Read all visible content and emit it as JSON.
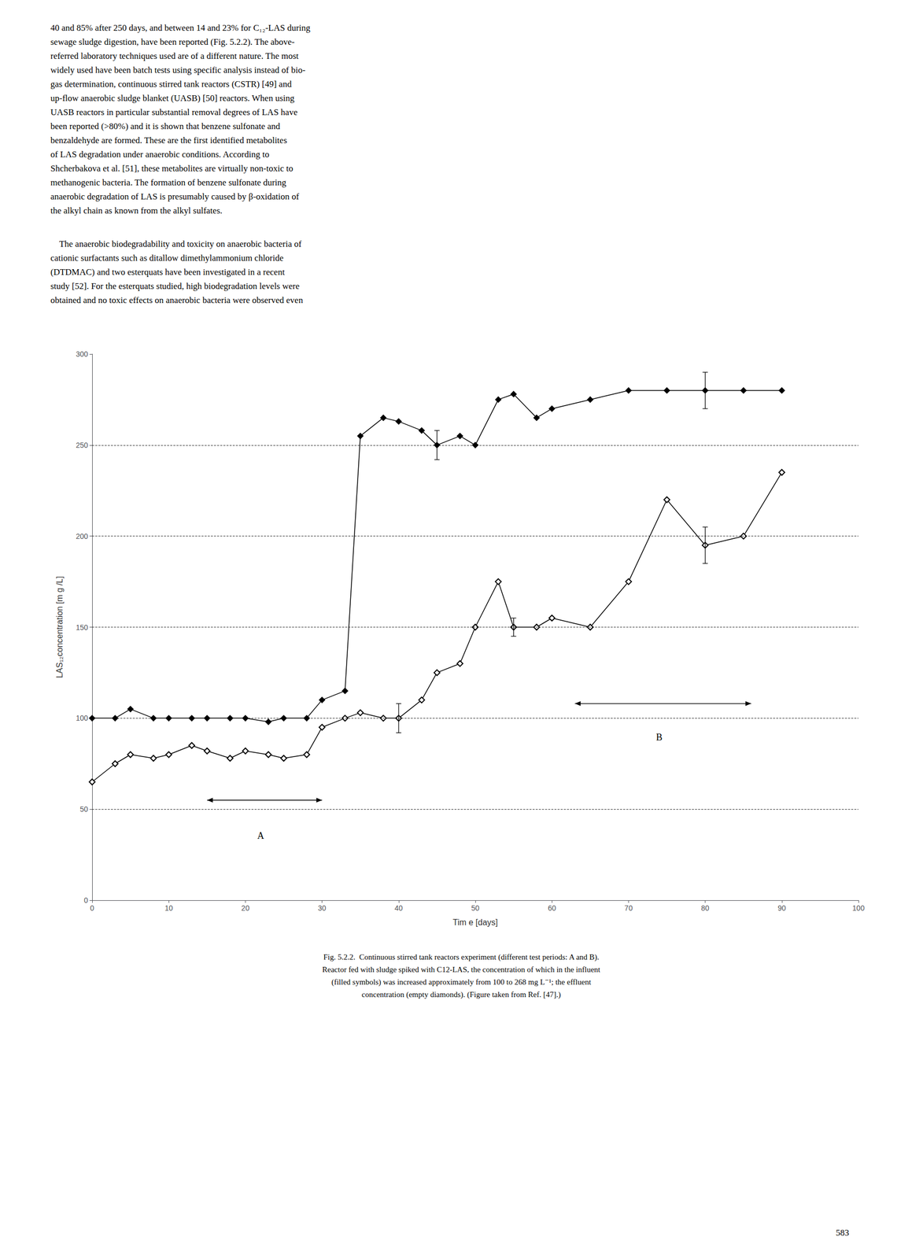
{
  "page_text": {
    "paragraphs": [
      "40 and 85% after 250 days, and between 14 and 23% for C₁₂-LAS during\nsewage sludge digestion, have been reported (Fig. 5.2.2). The above-\nreferred laboratory techniques used are of a different nature. The most\nwidely used have been batch tests using specific analysis instead of bio-\ngas determination, continuous stirred tank reactors (CSTR) [49] and\nup-flow anaerobic sludge blanket (UASB) [50] reactors. When using\nUASB reactors in particular substantial removal degrees of LAS have\nbeen reported (>80%) and it is shown that benzene sulfonate and\nbenzaldehyde are formed. These are the first identified metabolites\nof LAS degradation under anaerobic conditions. According to\nShcherbakova et al. [51], these metabolites are virtually non-toxic to\nmethanogenic bacteria. The formation of benzene sulfonate during\nanaerobic degradation of LAS is presumably caused by β-oxidation of\nthe alkyl chain as known from the alkyl sulfates.",
      "    The anaerobic biodegradability and toxicity on anaerobic bacteria of\ncationic surfactants such as ditallow dimethylammonium chloride\n(DTDMAC) and two esterquats have been investigated in a recent\nstudy [52]. For the esterquats studied, high biodegradation levels were\nobtained and no toxic effects on anaerobic bacteria were observed even"
    ],
    "caption": "Fig. 5.2.2.  Continuous stirred tank reactors experiment (different test periods: A and B).\nReactor fed with sludge spiked with C12-LAS, the concentration of which in the influent\n(filled symbols) was increased approximately from 100 to 268 mg L⁻¹; the effluent\nconcentration (empty diamonds). (Figure taken from Ref. [47].)",
    "page_number": "583"
  },
  "chart_data": {
    "type": "line",
    "xlabel": "Tim e [days]",
    "ylabel": "LAS₁₂concentration [m g /L]",
    "xlim": [
      0,
      100
    ],
    "ylim": [
      0,
      300
    ],
    "xticks": [
      0,
      10,
      20,
      30,
      40,
      50,
      60,
      70,
      80,
      90,
      100
    ],
    "yticks": [
      0,
      50,
      100,
      150,
      200,
      250,
      300
    ],
    "grid": false,
    "reference_lines": {
      "y": [
        50,
        100,
        150,
        200,
        250
      ],
      "line_style": "dashed",
      "color": "#000000"
    },
    "x": [
      0,
      3,
      5,
      8,
      10,
      13,
      15,
      18,
      20,
      23,
      25,
      28,
      30,
      33,
      35,
      38,
      40,
      43,
      45,
      48,
      50,
      53,
      55,
      58,
      60,
      65,
      70,
      75,
      80,
      85,
      90
    ],
    "series": [
      {
        "values": [
          100,
          100,
          105,
          100,
          100,
          100,
          100,
          100,
          100,
          98,
          100,
          100,
          110,
          115,
          255,
          265,
          263,
          258,
          250,
          255,
          250,
          275,
          278,
          265,
          270,
          275,
          280,
          280,
          280,
          280,
          280
        ],
        "errors": [
          0,
          0,
          0,
          0,
          0,
          0,
          0,
          0,
          0,
          0,
          0,
          0,
          0,
          0,
          0,
          0,
          0,
          0,
          8,
          0,
          0,
          0,
          0,
          0,
          0,
          0,
          0,
          0,
          10,
          0,
          0
        ],
        "color": "#000000",
        "marker": "diamond",
        "line_style": "solid"
      },
      {
        "values": [
          65,
          75,
          80,
          78,
          80,
          85,
          82,
          78,
          82,
          80,
          78,
          80,
          95,
          100,
          103,
          100,
          100,
          110,
          125,
          130,
          150,
          175,
          150,
          150,
          155,
          150,
          175,
          220,
          195,
          200,
          235
        ],
        "errors": [
          0,
          0,
          0,
          0,
          0,
          0,
          0,
          0,
          0,
          0,
          0,
          0,
          0,
          0,
          0,
          0,
          8,
          0,
          0,
          0,
          0,
          0,
          5,
          0,
          0,
          0,
          0,
          0,
          10,
          0,
          0
        ],
        "color": "#000000",
        "marker": "empty diamond",
        "line_style": "solid"
      }
    ],
    "arrows": [
      {
        "x1": 15,
        "x2": 30,
        "y": 55,
        "label": "A",
        "label_x": 22,
        "label_y": 38
      },
      {
        "x1": 63,
        "x2": 86,
        "y": 108,
        "label": "B",
        "label_x": 74,
        "label_y": 92
      }
    ]
  }
}
